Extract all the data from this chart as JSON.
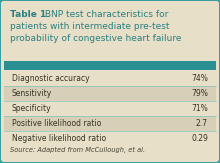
{
  "title_bold": "Table 1.",
  "title_line1_rest": " BNP test characteristics for",
  "title_line2": "patients with intermediate pre-test",
  "title_line3": "probability of congestive heart failure",
  "rows": [
    [
      "Diagnostic accuracy",
      "74%"
    ],
    [
      "Sensitivity",
      "79%"
    ],
    [
      "Specificity",
      "71%"
    ],
    [
      "Positive likelihood ratio",
      "2.7"
    ],
    [
      "Negative likelihood ratio",
      "0.29"
    ]
  ],
  "source": "Source: Adapted from McCullough, et al.",
  "outer_bg": "#3a9da0",
  "inner_bg": "#e8dfc8",
  "teal_bar_color": "#2a8f93",
  "title_color": "#2a8080",
  "row_colors": [
    "#e8dfc8",
    "#d8cfb8"
  ],
  "border_color": "#3a9da0",
  "text_color": "#333322",
  "source_color": "#444433",
  "divider_color": "#6abfc0"
}
